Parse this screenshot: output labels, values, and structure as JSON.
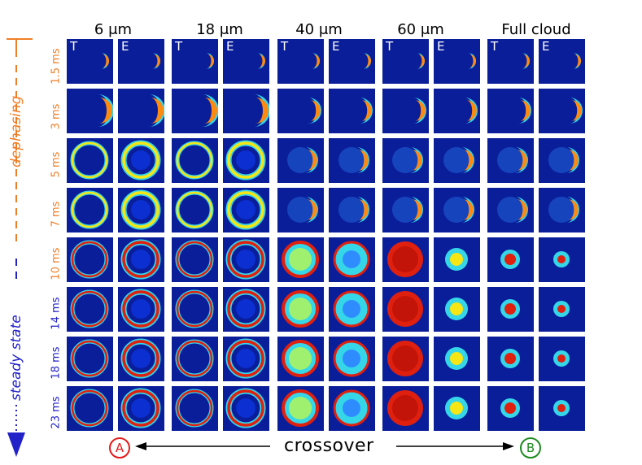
{
  "columns": [
    {
      "title": "6 μm"
    },
    {
      "title": "18 μm"
    },
    {
      "title": "40 μm"
    },
    {
      "title": "60 μm"
    },
    {
      "title": "Full cloud"
    }
  ],
  "panel_tags": {
    "theory": "T",
    "experiment": "E"
  },
  "rows": [
    {
      "time": "1.5 ms",
      "color": "#f07e26"
    },
    {
      "time": "3 ms",
      "color": "#f07e26"
    },
    {
      "time": "5 ms",
      "color": "#f07e26"
    },
    {
      "time": "7 ms",
      "color": "#f07e26"
    },
    {
      "time": "10 ms",
      "color": "#f07e26"
    },
    {
      "time": "14 ms",
      "color": "#2222c8"
    },
    {
      "time": "18 ms",
      "color": "#2222c8"
    },
    {
      "time": "23 ms",
      "color": "#2222c8"
    }
  ],
  "side_labels": {
    "dephasing": "dephasing",
    "steady_state": "steady state",
    "dephasing_color": "#f07e26",
    "steady_color": "#2222c8"
  },
  "bottom": {
    "crossover": "crossover",
    "left_marker": "A",
    "right_marker": "B",
    "left_marker_color": "#e31b1b",
    "right_marker_color": "#1f8a1f"
  }
}
